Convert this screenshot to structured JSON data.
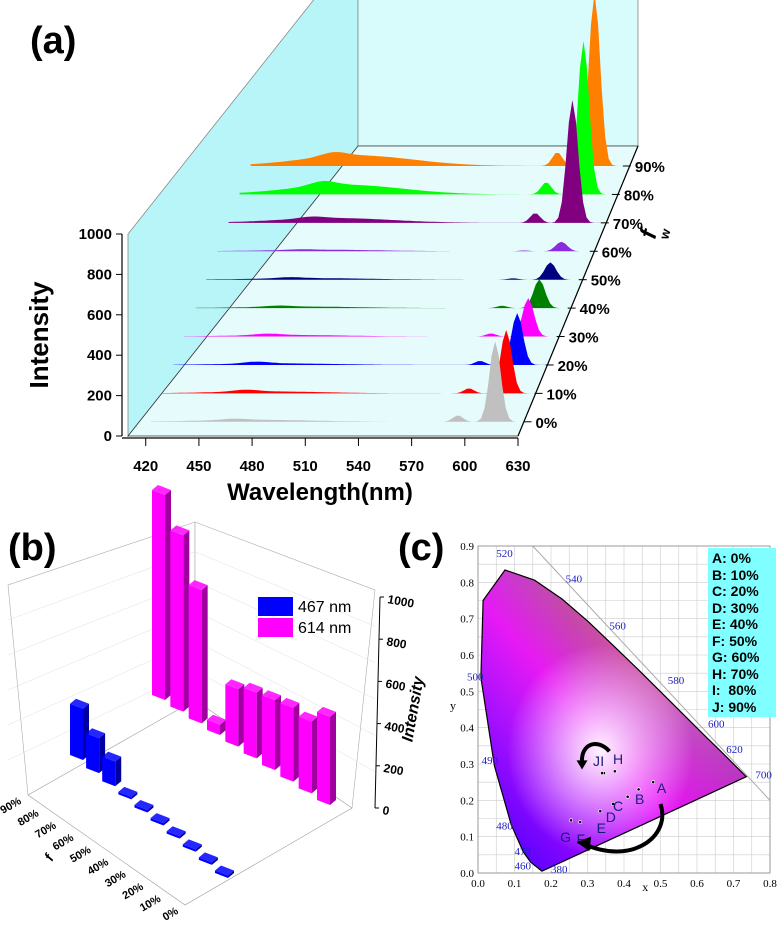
{
  "panel_labels": {
    "a": "(a)",
    "b": "(b)",
    "c": "(c)"
  },
  "chart_data": [
    {
      "type": "area",
      "panel": "(a)",
      "title": "",
      "xlabel": "Wavelength(nm)",
      "ylabel": "Intensity",
      "zlabel": "f",
      "zlabel_sub": "w",
      "xlim": [
        410,
        630
      ],
      "ylim": [
        0,
        1000
      ],
      "xticks": [
        420,
        450,
        480,
        510,
        540,
        570,
        600,
        630
      ],
      "yticks": [
        0,
        200,
        400,
        600,
        800,
        1000
      ],
      "series_labels": [
        "0%",
        "10%",
        "20%",
        "30%",
        "40%",
        "50%",
        "60%",
        "70%",
        "80%",
        "90%"
      ],
      "colors": [
        "#c0c0c0",
        "#ff0000",
        "#0000ff",
        "#ff00ff",
        "#008000",
        "#000080",
        "#8a2be2",
        "#800080",
        "#00ff00",
        "#ff8000"
      ],
      "series": [
        {
          "name": "0%",
          "peak_614": 420,
          "peak_467": 18,
          "broad": 10
        },
        {
          "name": "10%",
          "peak_614": 330,
          "peak_467": 25,
          "broad": 10
        },
        {
          "name": "20%",
          "peak_614": 270,
          "peak_467": 25,
          "broad": 8
        },
        {
          "name": "30%",
          "peak_614": 200,
          "peak_467": 20,
          "broad": 8
        },
        {
          "name": "40%",
          "peak_614": 150,
          "peak_467": 15,
          "broad": 8
        },
        {
          "name": "50%",
          "peak_614": 90,
          "peak_467": 15,
          "broad": 8
        },
        {
          "name": "60%",
          "peak_614": 50,
          "peak_467": 8,
          "broad": 8
        },
        {
          "name": "70%",
          "peak_614": 640,
          "peak_467": 25,
          "broad": 25
        },
        {
          "name": "80%",
          "peak_614": 800,
          "peak_467": 60,
          "broad": 50
        },
        {
          "name": "90%",
          "peak_614": 900,
          "peak_467": 55,
          "broad": 55
        }
      ]
    },
    {
      "type": "bar",
      "panel": "(b)",
      "zlabel": "Intensity",
      "ylabel": "f",
      "ylabel_sub": "w",
      "zlim": [
        0,
        1000
      ],
      "zticks": [
        0,
        200,
        400,
        600,
        800,
        1000
      ],
      "categories": [
        "0%",
        "10%",
        "20%",
        "30%",
        "40%",
        "50%",
        "60%",
        "70%",
        "80%",
        "90%"
      ],
      "series": [
        {
          "name": "467 nm",
          "color": "#0000ff",
          "values": [
            12,
            12,
            12,
            12,
            12,
            12,
            12,
            120,
            170,
            250
          ]
        },
        {
          "name": "614 nm",
          "color": "#ff00ff",
          "values": [
            430,
            350,
            360,
            340,
            320,
            280,
            50,
            650,
            860,
            1000
          ]
        }
      ]
    },
    {
      "type": "scatter",
      "panel": "(c)",
      "title": "",
      "xlabel": "x",
      "ylabel": "y",
      "xlim": [
        0.0,
        0.8
      ],
      "ylim": [
        0.0,
        0.9
      ],
      "xticks": [
        "0.0",
        "0.1",
        "0.2",
        "0.3",
        "0.4",
        "0.5",
        "0.6",
        "0.7",
        "0.8"
      ],
      "yticks": [
        "0.0",
        "0.1",
        "0.2",
        "0.3",
        "0.4",
        "0.5",
        "0.6",
        "0.7",
        "0.8",
        "0.9"
      ],
      "wavelength_labels": [
        "380",
        "460",
        "470",
        "480",
        "490",
        "500",
        "520",
        "540",
        "560",
        "580",
        "600",
        "620",
        "700"
      ],
      "points": [
        {
          "label": "A",
          "x": 0.48,
          "y": 0.25
        },
        {
          "label": "B",
          "x": 0.44,
          "y": 0.23
        },
        {
          "label": "C",
          "x": 0.41,
          "y": 0.21
        },
        {
          "label": "D",
          "x": 0.37,
          "y": 0.19
        },
        {
          "label": "E",
          "x": 0.335,
          "y": 0.17
        },
        {
          "label": "F",
          "x": 0.28,
          "y": 0.14
        },
        {
          "label": "G",
          "x": 0.255,
          "y": 0.145
        },
        {
          "label": "H",
          "x": 0.375,
          "y": 0.28
        },
        {
          "label": "I",
          "x": 0.345,
          "y": 0.275
        },
        {
          "label": "J",
          "x": 0.34,
          "y": 0.275
        }
      ],
      "legend": [
        "A: 0%",
        "B: 10%",
        "C: 20%",
        "D: 30%",
        "E: 40%",
        "F: 50%",
        "G: 60%",
        "H: 70%",
        "I:  80%",
        "J: 90%"
      ],
      "legend_position": "top-right"
    }
  ]
}
